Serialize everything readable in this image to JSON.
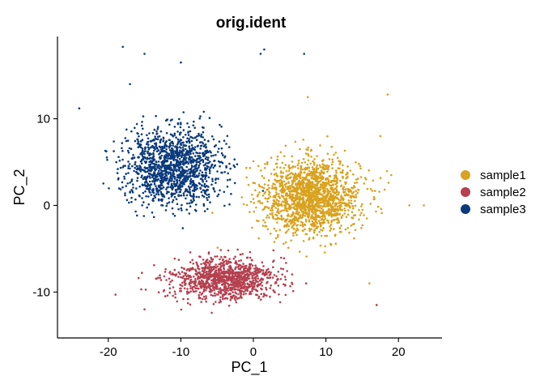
{
  "chart_data": {
    "type": "scatter",
    "title": "orig.ident",
    "xlabel": "PC_1",
    "ylabel": "PC_2",
    "xlim": [
      -27,
      26
    ],
    "ylim": [
      -15.3,
      19.5
    ],
    "xticks": [
      -20,
      -10,
      0,
      10,
      20
    ],
    "yticks": [
      -10,
      0,
      10
    ],
    "xtick_labels": [
      "-20",
      "-10",
      "0",
      "10",
      "20"
    ],
    "ytick_labels": [
      "-10",
      "0",
      "10"
    ],
    "grid": false,
    "legend_position": "right",
    "series": [
      {
        "name": "sample1",
        "color": "#D9A21F",
        "n_points": 1700,
        "center": [
          8,
          1
        ],
        "spread": [
          6,
          3.5
        ],
        "outliers": [
          [
            7.5,
            12.5
          ],
          [
            21.5,
            0
          ],
          [
            23.5,
            0
          ],
          [
            19,
            3.5
          ],
          [
            17.5,
            8
          ],
          [
            16,
            -9
          ],
          [
            17,
            -11.5
          ],
          [
            18.5,
            12.8
          ]
        ]
      },
      {
        "name": "sample2",
        "color": "#B5404F",
        "n_points": 1100,
        "center": [
          -4,
          -8.5
        ],
        "spread": [
          6.5,
          2
        ],
        "outliers": [
          [
            -19,
            -10.3
          ],
          [
            -15,
            -12
          ],
          [
            17,
            -11.5
          ]
        ]
      },
      {
        "name": "sample3",
        "color": "#0B3A7C",
        "n_points": 1400,
        "center": [
          -11,
          4.5
        ],
        "spread": [
          6,
          3.5
        ],
        "outliers": [
          [
            -18,
            18.3
          ],
          [
            -15,
            17.5
          ],
          [
            -10,
            16.5
          ],
          [
            -17,
            14
          ],
          [
            1,
            17.5
          ],
          [
            1.5,
            18
          ],
          [
            7,
            17.5
          ],
          [
            -24,
            11.2
          ]
        ]
      }
    ]
  }
}
